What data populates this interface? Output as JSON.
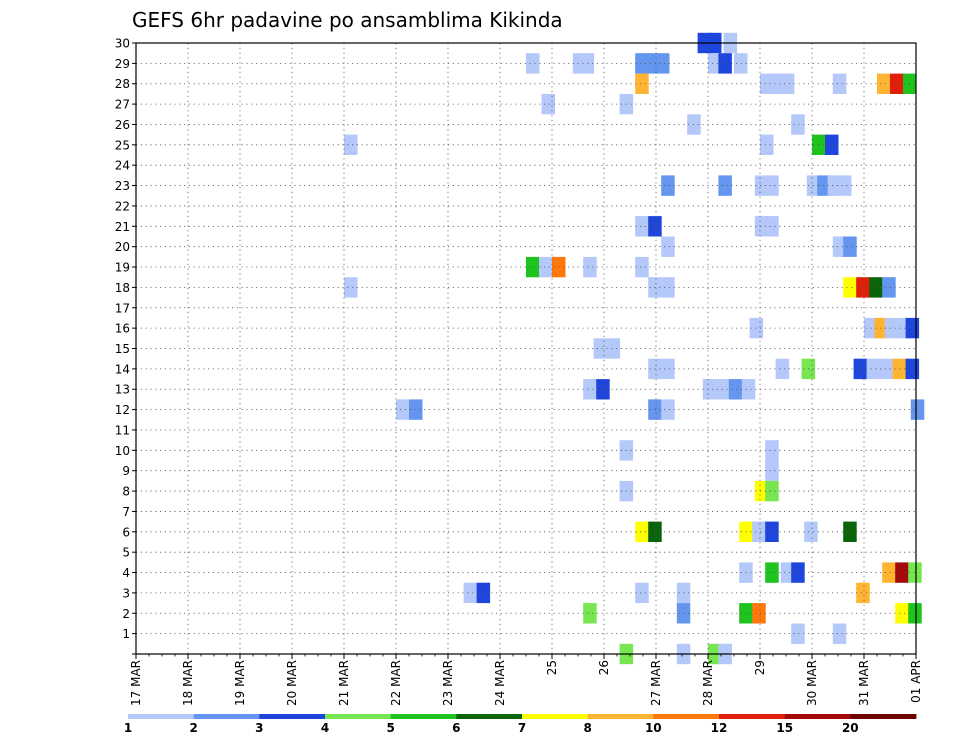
{
  "chart_data": {
    "type": "heatmap",
    "title": "GEFS 6hr padavine po ansamblima Kikinda",
    "xlabel": "",
    "ylabel": "",
    "x_tick_labels": [
      "17 MAR",
      "18 MAR",
      "19 MAR",
      "20 MAR",
      "21 MAR",
      "22 MAR",
      "23 MAR",
      "24 MAR",
      "25",
      "26",
      "27 MAR",
      "28 MAR",
      "29",
      "30 MAR",
      "31 MAR",
      "01 APR"
    ],
    "y_tick_labels": [
      "1",
      "2",
      "3",
      "4",
      "5",
      "6",
      "7",
      "8",
      "9",
      "10",
      "11",
      "12",
      "13",
      "14",
      "15",
      "16",
      "17",
      "18",
      "19",
      "20",
      "21",
      "22",
      "23",
      "24",
      "25",
      "26",
      "27",
      "28",
      "29",
      "30"
    ],
    "x_range_days": [
      0,
      15
    ],
    "y_range": [
      0,
      30
    ],
    "grid": true,
    "legend": {
      "placement": "bottom",
      "labels": [
        "1",
        "2",
        "3",
        "4",
        "5",
        "6",
        "7",
        "8",
        "10",
        "12",
        "15",
        "20"
      ],
      "colors": [
        "#b4c8fa",
        "#6496f0",
        "#1e46dc",
        "#78e650",
        "#1ec31e",
        "#0a640a",
        "#ffff00",
        "#ffb432",
        "#ff780a",
        "#e11e0a",
        "#a50a0a",
        "#6e0000"
      ]
    },
    "cells": [
      {
        "m": 30,
        "d": 10.8,
        "c": 2
      },
      {
        "m": 30,
        "d": 11.0,
        "c": 2
      },
      {
        "m": 30,
        "d": 11.3,
        "c": 0
      },
      {
        "m": 29,
        "d": 7.5,
        "c": 0
      },
      {
        "m": 29,
        "d": 8.4,
        "c": 0
      },
      {
        "m": 29,
        "d": 8.55,
        "c": 0
      },
      {
        "m": 29,
        "d": 9.6,
        "c": 1
      },
      {
        "m": 29,
        "d": 9.8,
        "c": 1
      },
      {
        "m": 29,
        "d": 10.0,
        "c": 1
      },
      {
        "m": 29,
        "d": 11.0,
        "c": 0
      },
      {
        "m": 29,
        "d": 11.2,
        "c": 2
      },
      {
        "m": 29,
        "d": 11.5,
        "c": 0
      },
      {
        "m": 28,
        "d": 9.6,
        "c": 7
      },
      {
        "m": 28,
        "d": 12.0,
        "c": 0
      },
      {
        "m": 28,
        "d": 12.2,
        "c": 0
      },
      {
        "m": 28,
        "d": 12.4,
        "c": 0
      },
      {
        "m": 28,
        "d": 13.4,
        "c": 0
      },
      {
        "m": 28,
        "d": 14.25,
        "c": 7
      },
      {
        "m": 28,
        "d": 14.5,
        "c": 9
      },
      {
        "m": 28,
        "d": 14.75,
        "c": 4
      },
      {
        "m": 27,
        "d": 7.8,
        "c": 0
      },
      {
        "m": 27,
        "d": 9.3,
        "c": 0
      },
      {
        "m": 26,
        "d": 10.6,
        "c": 0
      },
      {
        "m": 26,
        "d": 12.6,
        "c": 0
      },
      {
        "m": 25,
        "d": 4.0,
        "c": 0
      },
      {
        "m": 25,
        "d": 12.0,
        "c": 0
      },
      {
        "m": 25,
        "d": 13.0,
        "c": 4
      },
      {
        "m": 25,
        "d": 13.25,
        "c": 2
      },
      {
        "m": 23,
        "d": 10.1,
        "c": 1
      },
      {
        "m": 23,
        "d": 11.2,
        "c": 1
      },
      {
        "m": 23,
        "d": 11.9,
        "c": 0
      },
      {
        "m": 23,
        "d": 12.1,
        "c": 0
      },
      {
        "m": 23,
        "d": 12.9,
        "c": 0
      },
      {
        "m": 23,
        "d": 13.1,
        "c": 1
      },
      {
        "m": 23,
        "d": 13.3,
        "c": 0
      },
      {
        "m": 23,
        "d": 13.5,
        "c": 0
      },
      {
        "m": 21,
        "d": 9.6,
        "c": 0
      },
      {
        "m": 21,
        "d": 9.85,
        "c": 2
      },
      {
        "m": 21,
        "d": 11.9,
        "c": 0
      },
      {
        "m": 21,
        "d": 12.1,
        "c": 0
      },
      {
        "m": 20,
        "d": 10.1,
        "c": 0
      },
      {
        "m": 20,
        "d": 13.4,
        "c": 0
      },
      {
        "m": 20,
        "d": 13.6,
        "c": 1
      },
      {
        "m": 19,
        "d": 7.5,
        "c": 4
      },
      {
        "m": 19,
        "d": 7.75,
        "c": 0
      },
      {
        "m": 19,
        "d": 8.0,
        "c": 8
      },
      {
        "m": 19,
        "d": 8.6,
        "c": 0
      },
      {
        "m": 19,
        "d": 9.6,
        "c": 0
      },
      {
        "m": 18,
        "d": 4.0,
        "c": 0
      },
      {
        "m": 18,
        "d": 9.85,
        "c": 0
      },
      {
        "m": 18,
        "d": 10.1,
        "c": 0
      },
      {
        "m": 18,
        "d": 13.6,
        "c": 6
      },
      {
        "m": 18,
        "d": 13.85,
        "c": 9
      },
      {
        "m": 18,
        "d": 14.1,
        "c": 5
      },
      {
        "m": 18,
        "d": 14.35,
        "c": 1
      },
      {
        "m": 16,
        "d": 11.8,
        "c": 0
      },
      {
        "m": 16,
        "d": 14.0,
        "c": 0
      },
      {
        "m": 16,
        "d": 14.2,
        "c": 7
      },
      {
        "m": 16,
        "d": 14.4,
        "c": 0
      },
      {
        "m": 16,
        "d": 14.6,
        "c": 0
      },
      {
        "m": 16,
        "d": 14.8,
        "c": 2
      },
      {
        "m": 15,
        "d": 8.8,
        "c": 0
      },
      {
        "m": 15,
        "d": 9.05,
        "c": 0
      },
      {
        "m": 14,
        "d": 9.85,
        "c": 0
      },
      {
        "m": 14,
        "d": 10.1,
        "c": 0
      },
      {
        "m": 14,
        "d": 12.3,
        "c": 0
      },
      {
        "m": 14,
        "d": 12.8,
        "c": 3
      },
      {
        "m": 14,
        "d": 13.8,
        "c": 2
      },
      {
        "m": 14,
        "d": 14.05,
        "c": 0
      },
      {
        "m": 14,
        "d": 14.3,
        "c": 0
      },
      {
        "m": 14,
        "d": 14.55,
        "c": 7
      },
      {
        "m": 14,
        "d": 14.8,
        "c": 2
      },
      {
        "m": 13,
        "d": 8.6,
        "c": 0
      },
      {
        "m": 13,
        "d": 8.85,
        "c": 2
      },
      {
        "m": 13,
        "d": 10.9,
        "c": 0
      },
      {
        "m": 13,
        "d": 11.15,
        "c": 0
      },
      {
        "m": 13,
        "d": 11.4,
        "c": 1
      },
      {
        "m": 13,
        "d": 11.65,
        "c": 0
      },
      {
        "m": 12,
        "d": 5.0,
        "c": 0
      },
      {
        "m": 12,
        "d": 5.25,
        "c": 1
      },
      {
        "m": 12,
        "d": 9.85,
        "c": 1
      },
      {
        "m": 12,
        "d": 10.1,
        "c": 0
      },
      {
        "m": 12,
        "d": 14.9,
        "c": 1
      },
      {
        "m": 10,
        "d": 9.3,
        "c": 0
      },
      {
        "m": 10,
        "d": 12.1,
        "c": 0
      },
      {
        "m": 9,
        "d": 12.1,
        "c": 0
      },
      {
        "m": 8,
        "d": 9.3,
        "c": 0
      },
      {
        "m": 8,
        "d": 11.9,
        "c": 6
      },
      {
        "m": 8,
        "d": 12.1,
        "c": 3
      },
      {
        "m": 6,
        "d": 9.6,
        "c": 6
      },
      {
        "m": 6,
        "d": 9.85,
        "c": 5
      },
      {
        "m": 6,
        "d": 11.6,
        "c": 6
      },
      {
        "m": 6,
        "d": 11.85,
        "c": 0
      },
      {
        "m": 6,
        "d": 12.1,
        "c": 2
      },
      {
        "m": 6,
        "d": 12.85,
        "c": 0
      },
      {
        "m": 6,
        "d": 13.6,
        "c": 5
      },
      {
        "m": 4,
        "d": 11.6,
        "c": 0
      },
      {
        "m": 4,
        "d": 12.1,
        "c": 4
      },
      {
        "m": 4,
        "d": 12.4,
        "c": 0
      },
      {
        "m": 4,
        "d": 12.6,
        "c": 2
      },
      {
        "m": 4,
        "d": 14.35,
        "c": 7
      },
      {
        "m": 4,
        "d": 14.6,
        "c": 10
      },
      {
        "m": 4,
        "d": 14.85,
        "c": 3
      },
      {
        "m": 3,
        "d": 6.3,
        "c": 0
      },
      {
        "m": 3,
        "d": 6.55,
        "c": 2
      },
      {
        "m": 3,
        "d": 9.6,
        "c": 0
      },
      {
        "m": 3,
        "d": 10.4,
        "c": 0
      },
      {
        "m": 3,
        "d": 13.85,
        "c": 7
      },
      {
        "m": 2,
        "d": 8.6,
        "c": 3
      },
      {
        "m": 2,
        "d": 10.4,
        "c": 1
      },
      {
        "m": 2,
        "d": 11.6,
        "c": 4
      },
      {
        "m": 2,
        "d": 11.85,
        "c": 8
      },
      {
        "m": 2,
        "d": 14.6,
        "c": 6
      },
      {
        "m": 2,
        "d": 14.85,
        "c": 4
      },
      {
        "m": 1,
        "d": 12.6,
        "c": 0
      },
      {
        "m": 1,
        "d": 13.4,
        "c": 0
      },
      {
        "m": 0,
        "d": 9.3,
        "c": 3
      },
      {
        "m": 0,
        "d": 10.4,
        "c": 0
      },
      {
        "m": 0,
        "d": 11.0,
        "c": 3
      },
      {
        "m": 0,
        "d": 11.2,
        "c": 0
      }
    ]
  }
}
